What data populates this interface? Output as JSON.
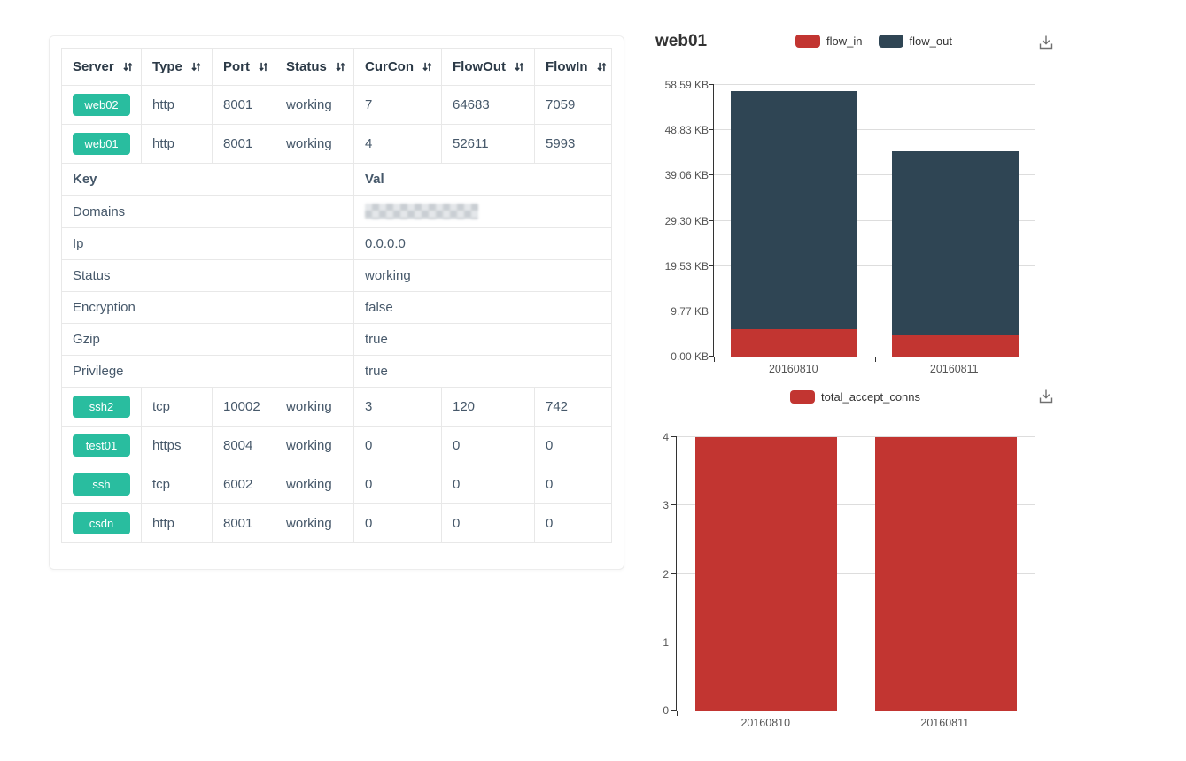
{
  "page": {
    "background": "#ffffff"
  },
  "colors": {
    "accent_green": "#29bd9f",
    "series_red": "#c23531",
    "series_dark_blue": "#2f4554",
    "table_border": "#e8e8e8",
    "header_text": "#2c3a47",
    "body_text": "#46586a",
    "axis_line": "#333333",
    "gridline": "#dddddd",
    "axis_label": "#555555"
  },
  "icons": {
    "sort": "sort-icon",
    "download": "download-icon"
  },
  "left_table": {
    "columns": [
      "Server",
      "Type",
      "Port",
      "Status",
      "CurCon",
      "FlowOut",
      "FlowIn"
    ],
    "rows_top": [
      {
        "server": "web02",
        "type": "http",
        "port": "8001",
        "status": "working",
        "curcon": "7",
        "flowout": "64683",
        "flowin": "7059"
      },
      {
        "server": "web01",
        "type": "http",
        "port": "8001",
        "status": "working",
        "curcon": "4",
        "flowout": "52611",
        "flowin": "5993"
      }
    ],
    "kv_header": {
      "key": "Key",
      "val": "Val"
    },
    "kv_rows": [
      {
        "key": "Domains",
        "val": "",
        "redacted": true
      },
      {
        "key": "Ip",
        "val": "0.0.0.0"
      },
      {
        "key": "Status",
        "val": "working"
      },
      {
        "key": "Encryption",
        "val": "false"
      },
      {
        "key": "Gzip",
        "val": "true"
      },
      {
        "key": "Privilege",
        "val": "true"
      }
    ],
    "rows_bottom": [
      {
        "server": "ssh2",
        "type": "tcp",
        "port": "10002",
        "status": "working",
        "curcon": "3",
        "flowout": "120",
        "flowin": "742"
      },
      {
        "server": "test01",
        "type": "https",
        "port": "8004",
        "status": "working",
        "curcon": "0",
        "flowout": "0",
        "flowin": "0"
      },
      {
        "server": "ssh",
        "type": "tcp",
        "port": "6002",
        "status": "working",
        "curcon": "0",
        "flowout": "0",
        "flowin": "0"
      },
      {
        "server": "csdn",
        "type": "http",
        "port": "8001",
        "status": "working",
        "curcon": "0",
        "flowout": "0",
        "flowin": "0"
      }
    ]
  },
  "charts": {
    "flow": {
      "title": "web01",
      "legend": [
        "flow_in",
        "flow_out"
      ]
    },
    "conns": {
      "legend": [
        "total_accept_conns"
      ]
    }
  },
  "chart_data": [
    {
      "type": "bar",
      "stacked": true,
      "title": "web01",
      "x": [
        "20160810",
        "20160811"
      ],
      "series": [
        {
          "name": "flow_in",
          "color": "#c23531",
          "values": [
            5.9,
            4.6
          ]
        },
        {
          "name": "flow_out",
          "color": "#2f4554",
          "values": [
            51.4,
            39.7
          ]
        }
      ],
      "unit": "KB",
      "ylim": [
        0,
        58.59
      ],
      "ymax": 58.59,
      "y_ticks": [
        "0.00 KB",
        "9.77 KB",
        "19.53 KB",
        "29.30 KB",
        "39.06 KB",
        "48.83 KB",
        "58.59 KB"
      ],
      "legend_position": "top-center",
      "grid": true
    },
    {
      "type": "bar",
      "stacked": false,
      "title": "",
      "x": [
        "20160810",
        "20160811"
      ],
      "series": [
        {
          "name": "total_accept_conns",
          "color": "#c23531",
          "values": [
            4,
            4
          ]
        }
      ],
      "unit": "conns",
      "ylim": [
        0,
        4
      ],
      "ymax": 4,
      "y_ticks": [
        "0",
        "1",
        "2",
        "3",
        "4"
      ],
      "legend_position": "top-center",
      "grid": true
    }
  ]
}
